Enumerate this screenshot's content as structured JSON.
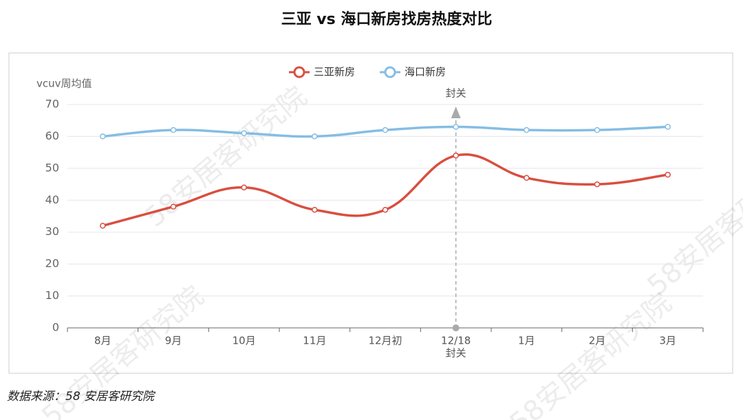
{
  "chart_data": {
    "type": "line",
    "title": "三亚 vs 海口新房找房热度对比",
    "y_label": "vcuv周均值",
    "categories": [
      "8月",
      "9月",
      "10月",
      "11月",
      "12月初",
      "12/18",
      "1月",
      "2月",
      "3月"
    ],
    "series": [
      {
        "name": "三亚新房",
        "color": "#d94e3f",
        "values": [
          32,
          38,
          44,
          37,
          37,
          54,
          47,
          45,
          48
        ]
      },
      {
        "name": "海口新房",
        "color": "#85bde4",
        "values": [
          60,
          62,
          61,
          60,
          62,
          63,
          62,
          62,
          63
        ]
      }
    ],
    "ylim": [
      0,
      70
    ],
    "yticks": [
      0,
      10,
      20,
      30,
      40,
      50,
      60,
      70
    ],
    "grid": true,
    "annotation": {
      "at": "12/18",
      "text": "封关"
    },
    "source": "数据来源：58 安居客研究院",
    "watermark": "58安居客研究院"
  }
}
